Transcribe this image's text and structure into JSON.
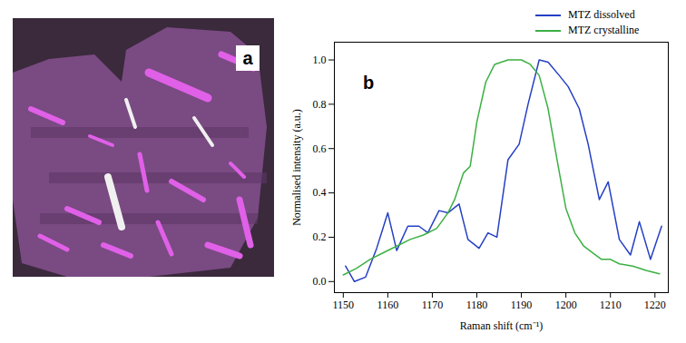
{
  "image": {
    "label": "a"
  },
  "chart_data": {
    "type": "line",
    "annotations": [
      "b"
    ],
    "x_label": "Raman shift (cm⁻¹)",
    "y_label": "Normalised intensity (a.u.)",
    "xlim": [
      1148,
      1223
    ],
    "xticks": [
      1150,
      1160,
      1170,
      1180,
      1190,
      1200,
      1210,
      1220
    ],
    "ylim": [
      -0.05,
      1.08
    ],
    "yticks": [
      {
        "value": 0,
        "label": "0.0"
      },
      0.2,
      0.4,
      0.6,
      0.8,
      {
        "value": 1,
        "label": "1.0"
      }
    ],
    "grid": false,
    "legend": "top-right",
    "series": [
      {
        "name": "MTZ dissolved",
        "color": "#2540c4",
        "x": [
          1150.5,
          1152.5,
          1155,
          1157.5,
          1160,
          1162,
          1164.5,
          1167,
          1169,
          1171.5,
          1173.5,
          1176,
          1178,
          1180.5,
          1182.5,
          1184.5,
          1187,
          1189.5,
          1191.5,
          1194,
          1196,
          1198.5,
          1200.5,
          1203,
          1205,
          1207.5,
          1209.5,
          1212,
          1214.5,
          1216.5,
          1219,
          1221.5
        ],
        "values": [
          0.07,
          0.0,
          0.02,
          0.15,
          0.31,
          0.14,
          0.25,
          0.25,
          0.22,
          0.32,
          0.31,
          0.35,
          0.19,
          0.15,
          0.22,
          0.2,
          0.55,
          0.62,
          0.8,
          1.0,
          0.99,
          0.93,
          0.88,
          0.78,
          0.62,
          0.37,
          0.45,
          0.19,
          0.12,
          0.27,
          0.1,
          0.25
        ]
      },
      {
        "name": "MTZ crystalline",
        "color": "#3cb043",
        "x": [
          1150,
          1153,
          1156,
          1159,
          1162,
          1165,
          1168,
          1171,
          1173.5,
          1175,
          1177,
          1178.5,
          1180,
          1182,
          1184,
          1187,
          1190,
          1192,
          1194,
          1196,
          1198,
          1200,
          1202,
          1204,
          1206,
          1208,
          1210,
          1212,
          1215,
          1218,
          1221
        ],
        "values": [
          0.03,
          0.06,
          0.1,
          0.13,
          0.16,
          0.19,
          0.21,
          0.24,
          0.31,
          0.37,
          0.49,
          0.52,
          0.72,
          0.9,
          0.98,
          1.0,
          1.0,
          0.98,
          0.93,
          0.78,
          0.55,
          0.33,
          0.22,
          0.16,
          0.13,
          0.1,
          0.1,
          0.08,
          0.07,
          0.05,
          0.035
        ]
      }
    ]
  }
}
